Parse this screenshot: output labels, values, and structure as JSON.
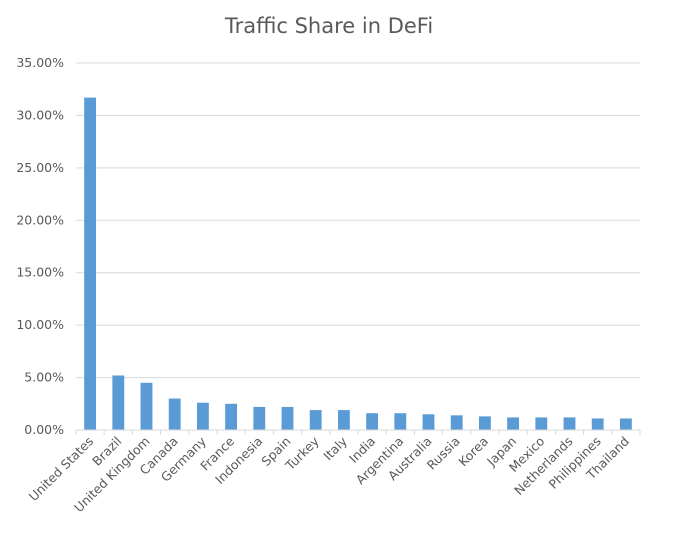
{
  "chart_data": {
    "type": "bar",
    "title": "Traffic Share in DeFi",
    "xlabel": "",
    "ylabel": "",
    "ylim": [
      0,
      35
    ],
    "yticks": [
      "0.00%",
      "5.00%",
      "10.00%",
      "15.00%",
      "20.00%",
      "25.00%",
      "30.00%",
      "35.00%"
    ],
    "grid": true,
    "legend": "none",
    "bar_color": "#5b9bd5",
    "grid_color": "#d9d9d9",
    "categories": [
      "United States",
      "Brazil",
      "United Kingdom",
      "Canada",
      "Germany",
      "France",
      "Indonesia",
      "Spain",
      "Turkey",
      "Italy",
      "India",
      "Argentina",
      "Australia",
      "Russia",
      "Korea",
      "Japan",
      "Mexico",
      "Netherlands",
      "Philippines",
      "Thailand"
    ],
    "values": [
      31.7,
      5.2,
      4.5,
      3.0,
      2.6,
      2.5,
      2.2,
      2.2,
      1.9,
      1.9,
      1.6,
      1.6,
      1.5,
      1.4,
      1.3,
      1.2,
      1.2,
      1.2,
      1.1,
      1.1
    ]
  }
}
